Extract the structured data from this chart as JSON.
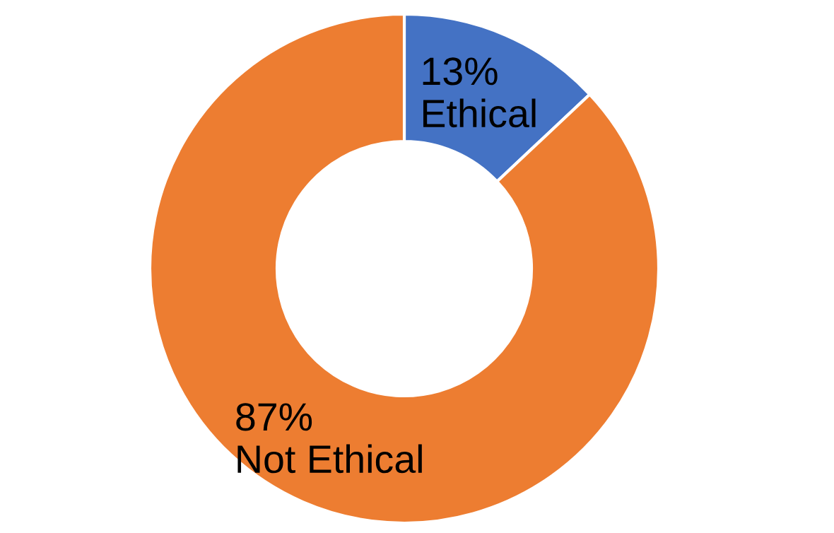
{
  "chart_data": {
    "type": "donut",
    "categories": [
      "Ethical",
      "Not Ethical"
    ],
    "values": [
      13,
      87
    ],
    "value_labels": [
      "13%",
      "87%"
    ],
    "colors": [
      "#4472c4",
      "#ed7d31"
    ]
  }
}
